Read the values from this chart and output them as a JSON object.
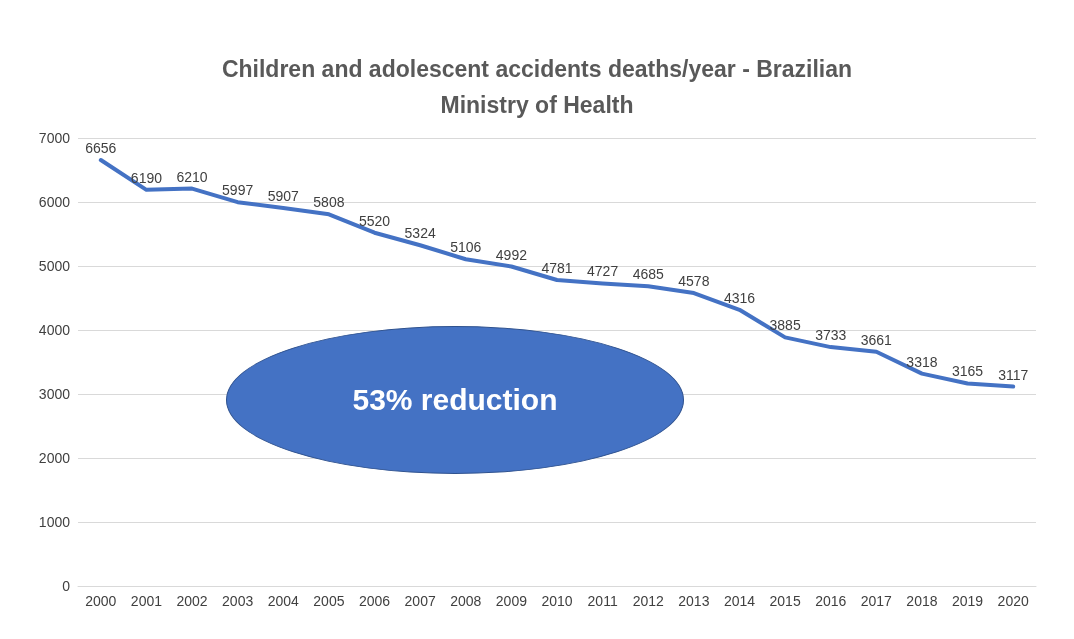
{
  "chart_data": {
    "type": "line",
    "title": "Children and adolescent accidents deaths/year - Brazilian\nMinistry of Health",
    "categories": [
      "2000",
      "2001",
      "2002",
      "2003",
      "2004",
      "2005",
      "2006",
      "2007",
      "2008",
      "2009",
      "2010",
      "2011",
      "2012",
      "2013",
      "2014",
      "2015",
      "2016",
      "2017",
      "2018",
      "2019",
      "2020"
    ],
    "series": [
      {
        "color": "#4472c4",
        "values": [
          6656,
          6190,
          6210,
          5997,
          5907,
          5808,
          5520,
          5324,
          5106,
          4992,
          4781,
          4727,
          4685,
          4578,
          4316,
          3885,
          3733,
          3661,
          3318,
          3165,
          3117
        ]
      }
    ],
    "ylim": [
      0,
      7000
    ],
    "yticks": [
      0,
      1000,
      2000,
      3000,
      4000,
      5000,
      6000,
      7000
    ],
    "grid": "y",
    "data_labels": true,
    "marker": "none",
    "line_style": "solid",
    "annotations": [
      "53% reduction"
    ]
  }
}
